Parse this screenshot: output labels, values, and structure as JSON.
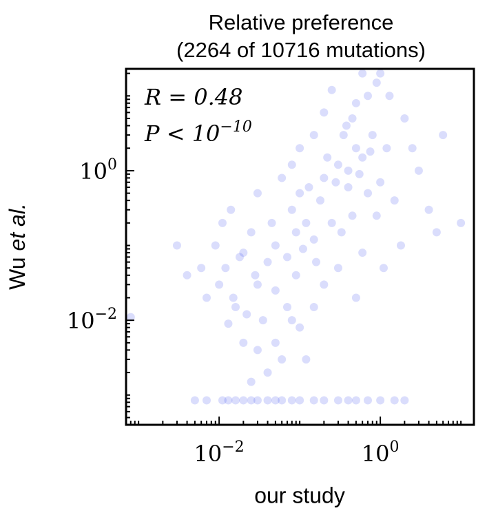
{
  "chart_data": {
    "type": "scatter",
    "title": [
      "Relative preference",
      "(2264 of 10716 mutations)"
    ],
    "xlabel": "our study",
    "ylabel": [
      "Wu",
      "et al."
    ],
    "annotations": [
      {
        "text": "R = 0.48"
      },
      {
        "text": "P < 10",
        "sup": "−10"
      }
    ],
    "log_x": true,
    "log_y": true,
    "color": "#3344ee",
    "xlim": [
      0.0007,
      14.5
    ],
    "ylim": [
      0.0004,
      23
    ],
    "xticks": [
      {
        "value": 0.01,
        "label": "10",
        "sup": "−2"
      },
      {
        "value": 1,
        "label": "10",
        "sup": "0"
      }
    ],
    "yticks": [
      {
        "value": 0.01,
        "label": "10",
        "sup": "−2"
      },
      {
        "value": 1,
        "label": "10",
        "sup": "0"
      }
    ],
    "xminorticks": [
      0.0008,
      0.0009,
      0.001,
      0.002,
      0.003,
      0.004,
      0.005,
      0.006,
      0.007,
      0.008,
      0.009,
      0.02,
      0.03,
      0.04,
      0.05,
      0.06,
      0.07,
      0.08,
      0.09,
      0.1,
      0.2,
      0.3,
      0.4,
      0.5,
      0.6,
      0.7,
      0.8,
      0.9,
      2,
      3,
      4,
      5,
      6,
      7,
      8,
      9,
      10
    ],
    "yminorticks": [
      0.0005,
      0.0006,
      0.0007,
      0.0008,
      0.0009,
      0.001,
      0.002,
      0.003,
      0.004,
      0.005,
      0.006,
      0.007,
      0.008,
      0.009,
      0.02,
      0.03,
      0.04,
      0.05,
      0.06,
      0.07,
      0.08,
      0.09,
      0.1,
      0.2,
      0.3,
      0.4,
      0.5,
      0.6,
      0.7,
      0.8,
      0.9,
      2,
      3,
      4,
      5,
      6,
      7,
      8,
      9,
      10,
      20
    ],
    "x": [
      0.012,
      0.02,
      0.03,
      0.015,
      0.05,
      0.08,
      0.1,
      0.2,
      0.3,
      0.5,
      0.4,
      0.6,
      0.8,
      1,
      1.5,
      0.25,
      0.15,
      0.04,
      0.025,
      0.018,
      0.01,
      0.007,
      0.006,
      0.035,
      0.05,
      0.07,
      0.09,
      0.12,
      0.18,
      0.22,
      0.35,
      0.45,
      0.7,
      0.9,
      1.2,
      2,
      3,
      4,
      5,
      1.8,
      0.6,
      0.3,
      0.2,
      0.1,
      0.06,
      0.04,
      0.03,
      0.02,
      0.013,
      0.011,
      0.009,
      0.014,
      0.03,
      0.06,
      0.08,
      0.1,
      0.15,
      0.5,
      0.25,
      0.6,
      1,
      1.3,
      2.5,
      0.004,
      0.003,
      0.0008,
      10,
      6,
      0.7,
      0.45,
      0.33,
      0.16,
      0.11,
      0.07,
      0.045,
      0.028,
      0.022,
      0.016,
      0.05,
      0.09,
      0.13,
      0.28,
      0.4,
      0.55,
      0.75,
      0.38,
      0.2,
      0.9,
      1.1,
      0.5,
      0.15,
      0.08,
      0.12,
      0.025,
      0.005,
      0.007,
      0.011,
      0.013,
      0.016,
      0.02,
      0.025,
      0.03,
      0.04,
      0.05,
      0.06,
      0.08,
      0.1,
      0.15,
      0.2,
      0.3,
      0.4,
      0.5,
      0.7,
      1,
      1.5,
      2
    ],
    "y": [
      0.05,
      0.08,
      0.03,
      0.02,
      0.1,
      0.3,
      0.5,
      0.8,
      1.2,
      2,
      0.6,
      1.5,
      3,
      0.7,
      0.4,
      0.2,
      0.12,
      0.06,
      0.15,
      0.07,
      0.03,
      0.02,
      0.05,
      0.01,
      0.005,
      0.015,
      0.04,
      0.2,
      0.4,
      1.5,
      3,
      5,
      10,
      15,
      2,
      5,
      1,
      0.3,
      0.15,
      0.1,
      0.08,
      0.05,
      0.03,
      0.008,
      0.003,
      0.002,
      0.004,
      0.005,
      0.009,
      0.2,
      0.1,
      0.3,
      0.5,
      0.8,
      1.2,
      2,
      3,
      8,
      12,
      20,
      20,
      10,
      2,
      0.04,
      0.1,
      0.011,
      0.2,
      3,
      0.5,
      0.25,
      0.15,
      0.06,
      0.09,
      0.07,
      0.2,
      0.04,
      0.012,
      0.015,
      0.025,
      0.15,
      0.6,
      0.7,
      1,
      0.9,
      1.8,
      4,
      6,
      0.25,
      0.05,
      0.02,
      0.015,
      0.01,
      0.003,
      0.0015,
      0.00085,
      0.00085,
      0.00085,
      0.00085,
      0.00085,
      0.00085,
      0.00085,
      0.00085,
      0.00085,
      0.00085,
      0.00085,
      0.00085,
      0.00085,
      0.00085,
      0.00085,
      0.00085,
      0.00085,
      0.00085,
      0.00085,
      0.00085,
      0.00085,
      0.00085
    ]
  }
}
